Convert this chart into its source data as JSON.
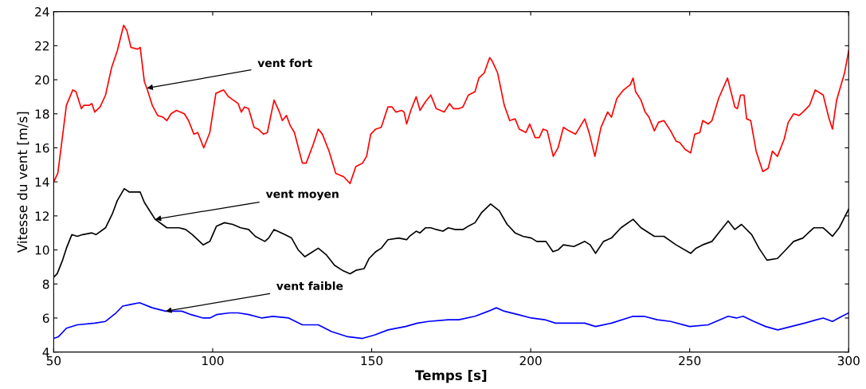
{
  "chart_data": {
    "type": "line",
    "xlabel": "Temps [s]",
    "ylabel": "Vitesse du vent [m/s]",
    "xlim": [
      50,
      300
    ],
    "ylim": [
      4,
      24
    ],
    "xticks": [
      50,
      100,
      150,
      200,
      250,
      300
    ],
    "yticks": [
      4,
      6,
      8,
      10,
      12,
      14,
      16,
      18,
      20,
      22,
      24
    ],
    "grid": false,
    "legend": false,
    "marker": "none",
    "line_style": "solid",
    "annotations": [
      {
        "text": "vent fort",
        "x": 79.3,
        "y": 19.5
      },
      {
        "text": "vent moyen",
        "x": 81.9,
        "y": 11.8
      },
      {
        "text": "vent faible",
        "x": 85.2,
        "y": 6.4
      }
    ],
    "series": [
      {
        "color": "#ff0000",
        "x": [
          50,
          51.3,
          54,
          56,
          57,
          58.7,
          59.5,
          61.2,
          62,
          62.9,
          64.6,
          66.3,
          68.2,
          70,
          72,
          73,
          74.3,
          76.4,
          77.2,
          78.5,
          79.3,
          81,
          82.7,
          84.4,
          85.6,
          86.9,
          88.6,
          91.1,
          92.4,
          94.1,
          95.3,
          97.2,
          99.1,
          101,
          103.4,
          105,
          108,
          109,
          110,
          111.3,
          113,
          114.3,
          116,
          117.2,
          119.3,
          121,
          121.9,
          123.2,
          124.4,
          125.7,
          128.2,
          129.4,
          131.6,
          133.2,
          134.5,
          136.6,
          138.7,
          141.2,
          143.2,
          145,
          147.1,
          148.4,
          149.7,
          151.3,
          153,
          155.1,
          156.4,
          157.6,
          159.4,
          160.2,
          161,
          162.3,
          164,
          165.2,
          166.9,
          168.6,
          170.3,
          172.8,
          174.5,
          175.7,
          177.4,
          178.7,
          180.4,
          182.5,
          183.7,
          185.4,
          187.1,
          187.9,
          189.6,
          191.7,
          193.4,
          195.1,
          196.4,
          198.5,
          199.7,
          201.4,
          202.7,
          203.9,
          205.2,
          207.1,
          208.6,
          210.3,
          212,
          214.1,
          217,
          218.5,
          220.2,
          222.1,
          224.2,
          225.4,
          227.1,
          229.2,
          231.3,
          232.2,
          233,
          234.7,
          236,
          237.2,
          238.9,
          240.2,
          241.9,
          244,
          245.7,
          246.9,
          248.6,
          250.3,
          251.6,
          253.2,
          254.1,
          255.8,
          257,
          259.1,
          261.9,
          264.2,
          265,
          266,
          267.1,
          267.9,
          269.2,
          270.9,
          273,
          274.7,
          276,
          277.6,
          279.7,
          281,
          282.7,
          284.4,
          285.6,
          287.7,
          289.5,
          292,
          293.7,
          294.9,
          296.2,
          298.7,
          300
        ],
        "values": [
          14.0,
          14.5,
          18.5,
          19.4,
          19.3,
          18.3,
          18.5,
          18.5,
          18.6,
          18.1,
          18.4,
          19.1,
          20.7,
          21.7,
          23.2,
          22.9,
          21.9,
          21.8,
          21.9,
          19.9,
          19.5,
          18.5,
          17.9,
          17.8,
          17.6,
          18.0,
          18.2,
          18.0,
          17.6,
          16.8,
          16.9,
          16.0,
          16.9,
          19.2,
          19.4,
          19.0,
          18.6,
          18.1,
          18.4,
          18.3,
          17.2,
          17.1,
          16.8,
          16.9,
          18.8,
          18.1,
          17.6,
          17.9,
          17.3,
          16.9,
          15.1,
          15.1,
          16.2,
          17.1,
          16.8,
          15.8,
          14.5,
          14.3,
          13.9,
          14.9,
          15.1,
          15.5,
          16.8,
          17.1,
          17.2,
          18.4,
          18.4,
          18.1,
          18.2,
          18.1,
          17.4,
          18.2,
          19.0,
          18.2,
          18.7,
          19.1,
          18.3,
          18.1,
          18.6,
          18.3,
          18.3,
          18.4,
          19.1,
          19.3,
          20.1,
          20.4,
          21.3,
          21.1,
          20.4,
          18.5,
          17.6,
          17.7,
          17.1,
          16.9,
          17.4,
          16.6,
          16.6,
          17.1,
          17.0,
          15.5,
          16.0,
          17.2,
          17.0,
          16.8,
          17.7,
          16.8,
          15.5,
          17.2,
          18.1,
          17.8,
          18.9,
          19.4,
          19.7,
          20.1,
          19.3,
          18.8,
          18.1,
          17.8,
          17.0,
          17.5,
          17.6,
          17.0,
          16.4,
          16.3,
          15.9,
          15.7,
          16.8,
          16.9,
          17.6,
          17.4,
          17.6,
          18.9,
          20.1,
          18.4,
          18.3,
          19.1,
          19.1,
          17.7,
          17.6,
          15.8,
          14.6,
          14.8,
          15.8,
          15.5,
          16.5,
          17.5,
          18.0,
          17.9,
          18.1,
          18.5,
          19.4,
          19.1,
          17.8,
          17.1,
          18.8,
          20.4,
          21.7
        ]
      },
      {
        "color": "#000000",
        "x": [
          50,
          51.1,
          52.8,
          54,
          55.7,
          57.4,
          59.1,
          62,
          63.3,
          66.3,
          68.4,
          70,
          72.2,
          73.8,
          77.2,
          78.5,
          80.2,
          81.9,
          85.6,
          89.4,
          91.5,
          93.6,
          97,
          99.1,
          101.2,
          103.7,
          106.3,
          108.8,
          111.3,
          113.4,
          116.4,
          117.6,
          119.3,
          122.7,
          124.8,
          126.9,
          129,
          130.7,
          133.2,
          135.8,
          138.3,
          140.8,
          143.2,
          145,
          147.6,
          149.2,
          151.3,
          153,
          155.1,
          158.5,
          161,
          161.9,
          164,
          165.2,
          166.9,
          168.6,
          170.3,
          172.4,
          174.1,
          176.2,
          178.7,
          180.4,
          182.5,
          184.6,
          187.4,
          190.1,
          192.6,
          195.1,
          197.6,
          200.2,
          201.9,
          204.8,
          207,
          208.6,
          210.3,
          213.6,
          217,
          218.7,
          220.4,
          222.9,
          225.4,
          228.4,
          232.2,
          234.7,
          238.9,
          241.9,
          245.7,
          250.3,
          252,
          254.1,
          257,
          259.1,
          262.1,
          264.2,
          266.3,
          269.5,
          271.8,
          274.3,
          277.6,
          280.2,
          282.7,
          285.6,
          289,
          292,
          294.9,
          297,
          300
        ],
        "values": [
          8.4,
          8.6,
          9.4,
          10.1,
          10.9,
          10.8,
          10.9,
          11.0,
          10.9,
          11.3,
          12.1,
          12.9,
          13.6,
          13.4,
          13.4,
          12.8,
          12.3,
          11.8,
          11.3,
          11.3,
          11.2,
          10.9,
          10.3,
          10.5,
          11.4,
          11.6,
          11.5,
          11.3,
          11.2,
          10.8,
          10.5,
          10.7,
          11.2,
          10.9,
          10.7,
          10.0,
          9.6,
          9.8,
          10.1,
          9.7,
          9.1,
          8.8,
          8.6,
          8.8,
          8.9,
          9.5,
          9.9,
          10.1,
          10.6,
          10.7,
          10.6,
          10.8,
          11.1,
          11.0,
          11.3,
          11.3,
          11.2,
          11.1,
          11.3,
          11.2,
          11.2,
          11.4,
          11.6,
          12.2,
          12.7,
          12.3,
          11.5,
          11.0,
          10.8,
          10.7,
          10.5,
          10.5,
          9.9,
          10.0,
          10.3,
          10.2,
          10.5,
          10.3,
          9.8,
          10.5,
          10.7,
          11.3,
          11.8,
          11.3,
          10.8,
          10.8,
          10.3,
          9.8,
          10.1,
          10.3,
          10.5,
          11.0,
          11.7,
          11.2,
          11.5,
          10.9,
          10.1,
          9.4,
          9.5,
          10.0,
          10.5,
          10.7,
          11.3,
          11.3,
          10.8,
          11.3,
          12.4
        ]
      },
      {
        "color": "#0000ff",
        "x": [
          50,
          51.5,
          54,
          57.4,
          62.9,
          66.3,
          69.6,
          71.7,
          74.3,
          77,
          81,
          85.2,
          90.3,
          93.2,
          97,
          99.1,
          101.2,
          105.4,
          108,
          111.3,
          115.5,
          118.9,
          123.9,
          128.2,
          133.2,
          137.4,
          142.5,
          147.1,
          150.9,
          155.1,
          160.6,
          164.4,
          167.8,
          174.1,
          177.4,
          182.5,
          186.7,
          189.2,
          191.7,
          196,
          200.2,
          204.4,
          207.8,
          212.8,
          217,
          220.4,
          225.4,
          232.2,
          235.6,
          239.8,
          244,
          250,
          255.8,
          262.1,
          264.7,
          266.8,
          270.2,
          273.9,
          277.7,
          281.9,
          286.1,
          289.9,
          292,
          294.9,
          297.9,
          300
        ],
        "values": [
          4.8,
          4.9,
          5.4,
          5.6,
          5.7,
          5.8,
          6.3,
          6.7,
          6.8,
          6.9,
          6.6,
          6.4,
          6.4,
          6.2,
          6.0,
          6.0,
          6.2,
          6.3,
          6.3,
          6.2,
          6.0,
          6.1,
          6.0,
          5.6,
          5.6,
          5.2,
          4.9,
          4.8,
          5.0,
          5.3,
          5.5,
          5.7,
          5.8,
          5.9,
          5.9,
          6.1,
          6.4,
          6.6,
          6.4,
          6.2,
          6.0,
          5.9,
          5.7,
          5.7,
          5.7,
          5.5,
          5.7,
          6.1,
          6.1,
          5.9,
          5.8,
          5.5,
          5.6,
          6.1,
          6.0,
          6.1,
          5.8,
          5.5,
          5.3,
          5.5,
          5.7,
          5.9,
          6.0,
          5.8,
          6.1,
          6.3
        ]
      }
    ]
  }
}
